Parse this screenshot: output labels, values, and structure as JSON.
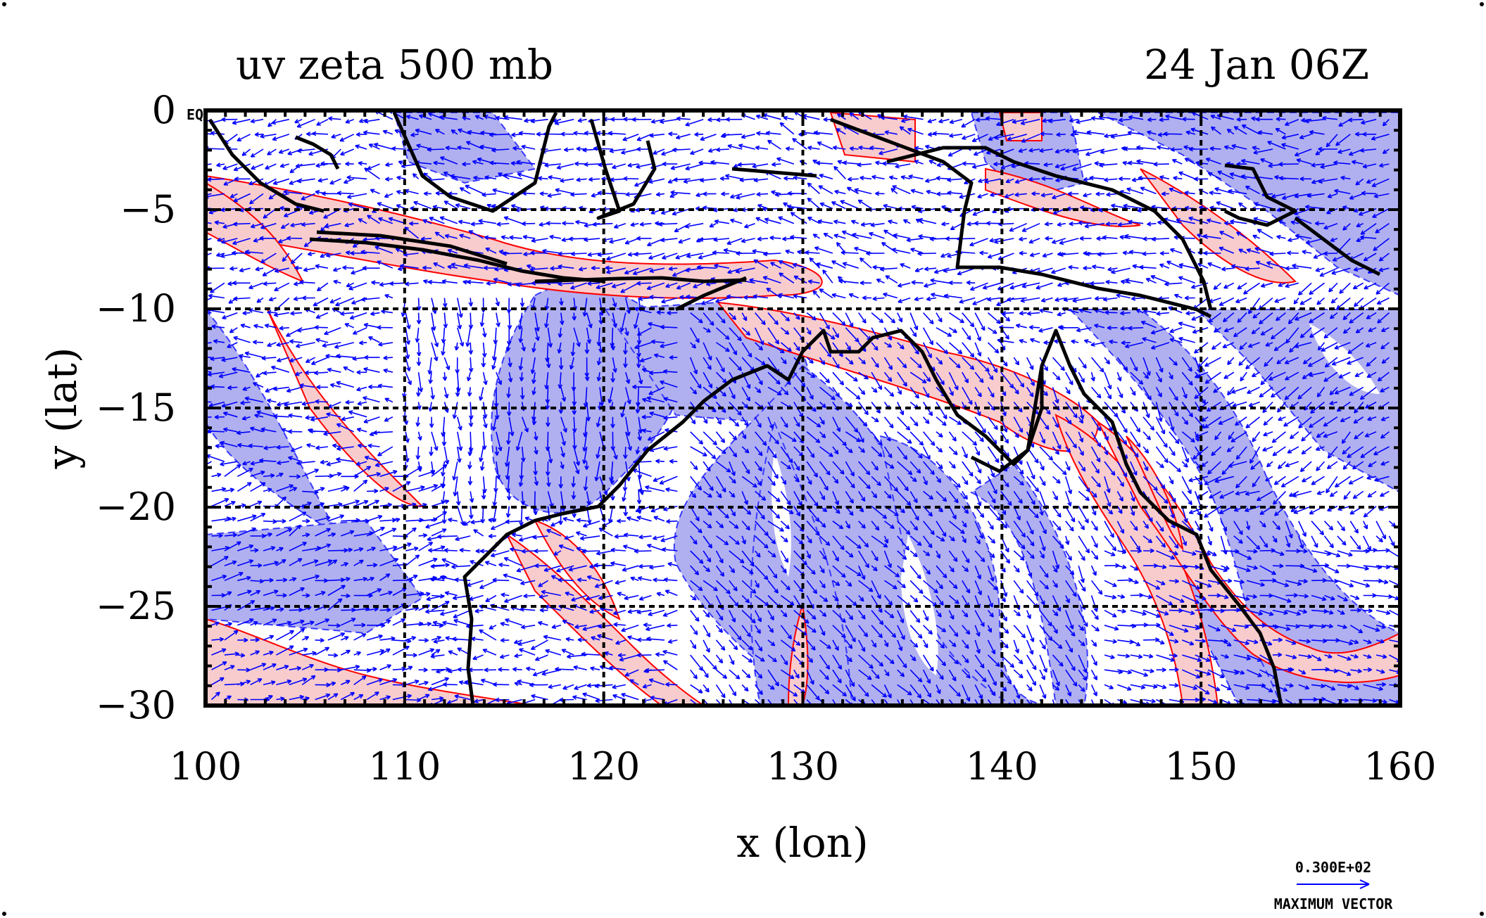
{
  "chart_data": {
    "type": "map",
    "title": "uv zeta 500 mb",
    "time_label": "24 Jan 06Z",
    "xlabel": "x (lon)",
    "ylabel": "y (lat)",
    "xlim": [
      100,
      160
    ],
    "ylim": [
      -30,
      0
    ],
    "xticks": [
      100,
      110,
      120,
      130,
      140,
      150,
      160
    ],
    "yticks": [
      0,
      -5,
      -10,
      -15,
      -20,
      -25,
      -30
    ],
    "xtick_labels": [
      "100",
      "110",
      "120",
      "130",
      "140",
      "150",
      "160"
    ],
    "ytick_labels": [
      "0",
      "−5",
      "−10",
      "−15",
      "−20",
      "−25",
      "−30"
    ],
    "grid": true,
    "corner_label": "EQ",
    "vector_key_value": "0.300E+02",
    "vector_key_label": "MAXIMUM VECTOR",
    "colors": {
      "positive_fill": "#f8cccc",
      "negative_fill": "#b0b0f0",
      "positive_contour": "#ff0000",
      "negative_contour": "#0000ff",
      "vector": "#0000ff",
      "coastline": "#000000"
    }
  }
}
